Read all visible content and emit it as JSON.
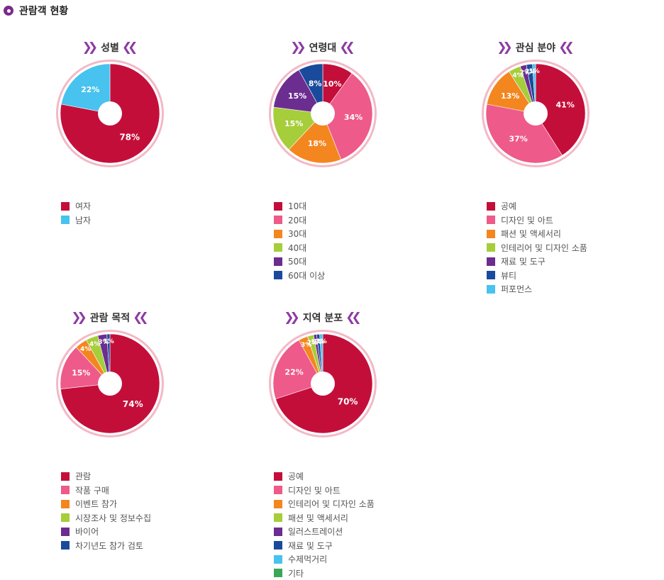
{
  "header": {
    "title": "관람객 현황"
  },
  "colors": {
    "crimson": "#c40e3a",
    "pink": "#ee5a8a",
    "orange": "#f4861f",
    "lime": "#a6cd3a",
    "purple": "#6b2d8f",
    "navy": "#1a4a9c",
    "sky": "#48c2ee",
    "green": "#3aa756",
    "chevron": "#8e3aa3"
  },
  "chart_data": [
    {
      "type": "pie",
      "title": "성별",
      "slices": [
        {
          "label": "여자",
          "value": 78,
          "text": "78%",
          "color": "#c40e3a"
        },
        {
          "label": "남자",
          "value": 22,
          "text": "22%",
          "color": "#48c2ee"
        }
      ]
    },
    {
      "type": "pie",
      "title": "연령대",
      "slices": [
        {
          "label": "10대",
          "value": 10,
          "text": "10%",
          "color": "#c40e3a"
        },
        {
          "label": "20대",
          "value": 34,
          "text": "34%",
          "color": "#ee5a8a"
        },
        {
          "label": "30대",
          "value": 18,
          "text": "18%",
          "color": "#f4861f"
        },
        {
          "label": "40대",
          "value": 15,
          "text": "15%",
          "color": "#a6cd3a"
        },
        {
          "label": "50대",
          "value": 15,
          "text": "15%",
          "color": "#6b2d8f"
        },
        {
          "label": "60대 이상",
          "value": 8,
          "text": "8%",
          "color": "#1a4a9c"
        }
      ]
    },
    {
      "type": "pie",
      "title": "관심 분야",
      "slices": [
        {
          "label": "공예",
          "value": 41,
          "text": "41%",
          "color": "#c40e3a"
        },
        {
          "label": "디자인 및 아트",
          "value": 37,
          "text": "37%",
          "color": "#ee5a8a"
        },
        {
          "label": "패션 및 액세서리",
          "value": 13,
          "text": "13%",
          "color": "#f4861f"
        },
        {
          "label": "인테리어 및 디자인 소품",
          "value": 4,
          "text": "4%",
          "color": "#a6cd3a"
        },
        {
          "label": "재료 및 도구",
          "value": 2,
          "text": "2%",
          "color": "#6b2d8f"
        },
        {
          "label": "뷰티",
          "value": 2,
          "text": "2%",
          "color": "#1a4a9c"
        },
        {
          "label": "퍼포먼스",
          "value": 1,
          "text": "1%",
          "color": "#48c2ee"
        }
      ]
    },
    {
      "type": "pie",
      "title": "관람 목적",
      "slices": [
        {
          "label": "관람",
          "value": 74,
          "text": "74%",
          "color": "#c40e3a"
        },
        {
          "label": "작품 구매",
          "value": 15,
          "text": "15%",
          "color": "#ee5a8a"
        },
        {
          "label": "이벤트 참가",
          "value": 4,
          "text": "4%",
          "color": "#f4861f"
        },
        {
          "label": "시장조사 및 정보수집",
          "value": 4,
          "text": "4%",
          "color": "#a6cd3a"
        },
        {
          "label": "바이어",
          "value": 3,
          "text": "3%",
          "color": "#6b2d8f"
        },
        {
          "label": "차기년도 참가 검토",
          "value": 1,
          "text": "1%",
          "color": "#1a4a9c"
        }
      ]
    },
    {
      "type": "pie",
      "title": "지역 분포",
      "slices": [
        {
          "label": "공예",
          "value": 70,
          "text": "70%",
          "color": "#c40e3a"
        },
        {
          "label": "디자인 및 아트",
          "value": 22,
          "text": "22%",
          "color": "#ee5a8a"
        },
        {
          "label": "인테리어 및 디자인 소품",
          "value": 3,
          "text": "3%",
          "color": "#f4861f"
        },
        {
          "label": "패션 및 액세서리",
          "value": 2,
          "text": "2%",
          "color": "#a6cd3a"
        },
        {
          "label": "일러스트레이션",
          "value": 1,
          "text": "1%",
          "color": "#6b2d8f"
        },
        {
          "label": "재료 및 도구",
          "value": 1,
          "text": "1%",
          "color": "#1a4a9c"
        },
        {
          "label": "수제먹거리",
          "value": 1,
          "text": "1%",
          "color": "#48c2ee"
        },
        {
          "label": "기타",
          "value": 0,
          "text": "",
          "color": "#3aa756"
        }
      ]
    }
  ]
}
